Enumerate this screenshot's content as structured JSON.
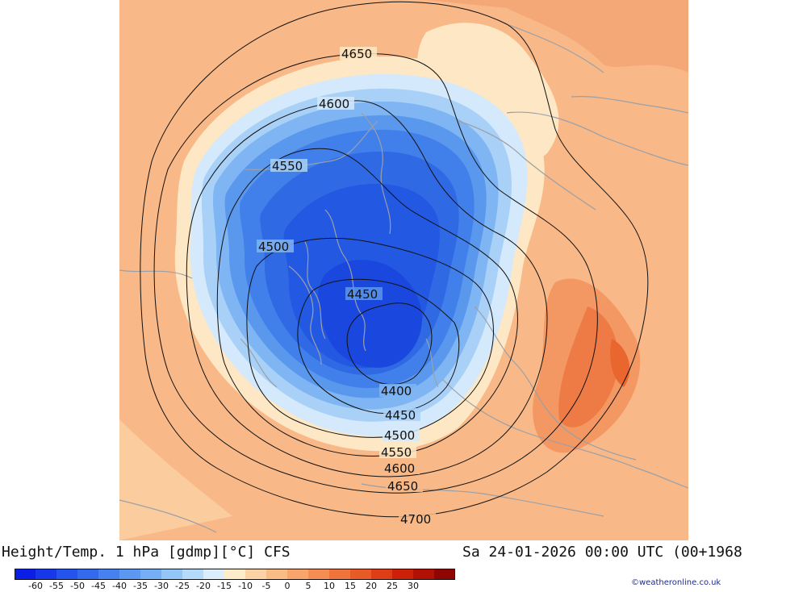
{
  "header": {
    "chart_title": "Height/Temp. 1 hPa [gdmp][°C] CFS",
    "valid_time": "Sa 24-01-2026 00:00 UTC (00+1968"
  },
  "credit": "©weatheronline.co.uk",
  "colorbar": {
    "unit": "°C",
    "ticks": [
      "-60",
      "-55",
      "-50",
      "-45",
      "-40",
      "-35",
      "-30",
      "-25",
      "-20",
      "-15",
      "-10",
      "-5",
      "0",
      "5",
      "10",
      "15",
      "20",
      "25",
      "30"
    ],
    "colors": [
      "#0a1ee6",
      "#1637ea",
      "#2454ec",
      "#3469ee",
      "#4781f0",
      "#5c98f2",
      "#75aef4",
      "#93c5f7",
      "#b6dbfa",
      "#dcedfc",
      "#fdebc9",
      "#fbd3a6",
      "#f9bc87",
      "#f7a56c",
      "#f38d52",
      "#ef733a",
      "#e85a26",
      "#dd3e16",
      "#cc2108",
      "#b31005",
      "#8e0502"
    ]
  },
  "map": {
    "height_contours": [
      {
        "value": "4400",
        "label": "4400"
      },
      {
        "value": "4450",
        "label": "4450"
      },
      {
        "value": "4450",
        "label": "4450"
      },
      {
        "value": "4500",
        "label": "4500"
      },
      {
        "value": "4500",
        "label": "4500"
      },
      {
        "value": "4550",
        "label": "4550"
      },
      {
        "value": "4550",
        "label": "4550"
      },
      {
        "value": "4600",
        "label": "4600"
      },
      {
        "value": "4600",
        "label": "4600"
      },
      {
        "value": "4650",
        "label": "4650"
      },
      {
        "value": "4650",
        "label": "4650"
      },
      {
        "value": "4700",
        "label": "4700"
      }
    ],
    "colors": {
      "background": "#f8b887",
      "coastline": "#9aa0a8",
      "contour": "#111111"
    }
  }
}
